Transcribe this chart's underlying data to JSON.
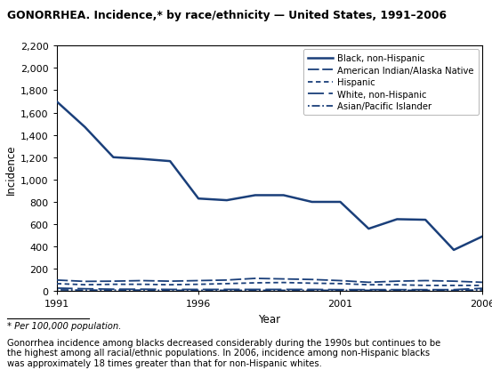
{
  "title": "GONORRHEA. Incidence,* by race/ethnicity — United States, 1991–2006",
  "xlabel": "Year",
  "ylabel": "Incidence",
  "ylim": [
    0,
    2200
  ],
  "yticks": [
    0,
    200,
    400,
    600,
    800,
    1000,
    1200,
    1400,
    1600,
    1800,
    2000,
    2200
  ],
  "years": [
    1991,
    1992,
    1993,
    1994,
    1995,
    1996,
    1997,
    1998,
    1999,
    2000,
    2001,
    2002,
    2003,
    2004,
    2005,
    2006
  ],
  "black": [
    1700,
    1470,
    1200,
    1185,
    1165,
    830,
    815,
    860,
    860,
    800,
    800,
    560,
    645,
    640,
    370,
    490
  ],
  "american_indian": [
    100,
    88,
    90,
    95,
    90,
    95,
    100,
    115,
    110,
    105,
    95,
    80,
    90,
    95,
    90,
    80
  ],
  "hispanic": [
    68,
    58,
    62,
    62,
    58,
    62,
    68,
    75,
    78,
    72,
    68,
    58,
    58,
    52,
    52,
    52
  ],
  "white": [
    28,
    22,
    18,
    18,
    16,
    16,
    16,
    16,
    16,
    16,
    14,
    14,
    14,
    14,
    14,
    26
  ],
  "asian": [
    12,
    10,
    10,
    10,
    8,
    8,
    8,
    8,
    8,
    8,
    8,
    8,
    8,
    8,
    8,
    12
  ],
  "color": "#1a3f7a",
  "footnote1": "* Per 100,000 population.",
  "footnote2": "Gonorrhea incidence among blacks decreased considerably during the 1990s but continues to be\nthe highest among all racial/ethnic populations. In 2006, incidence among non-Hispanic blacks\nwas approximately 18 times greater than that for non-Hispanic whites.",
  "legend_labels": [
    "Black, non-Hispanic",
    "American Indian/Alaska Native",
    "Hispanic",
    "White, non-Hispanic",
    "Asian/Pacific Islander"
  ]
}
